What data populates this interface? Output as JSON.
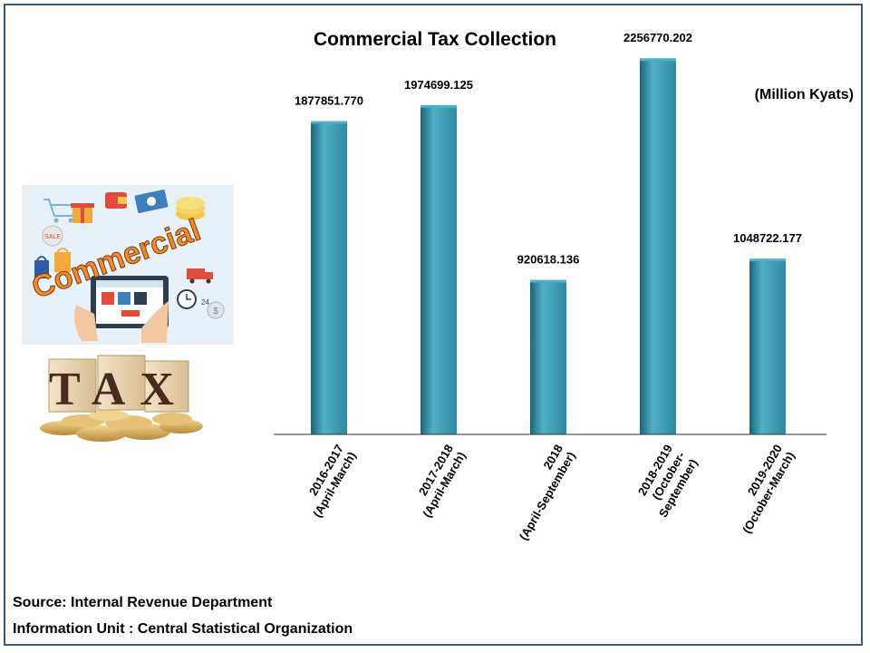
{
  "header": {
    "title": "Commercial Tax Collection",
    "unit": "(Million Kyats)"
  },
  "illustrations": {
    "commercial_word": "Commercial",
    "tax_word": "TAX"
  },
  "footer": {
    "source": "Source: Internal Revenue Department",
    "info": "Information Unit :  Central Statistical Organization"
  },
  "colors": {
    "bar": "#2f8aa0",
    "bar_light": "#4fb0c6",
    "bar_dark": "#1d6477",
    "axis": "#333333"
  },
  "chart_data": {
    "type": "bar",
    "title": "Commercial Tax Collection",
    "ylabel": "(Million Kyats)",
    "xlabel": "",
    "categories": [
      [
        "2016-2017",
        "(April-March)"
      ],
      [
        "2017-2018",
        "(April-March)"
      ],
      [
        "2018",
        "(April-September)"
      ],
      [
        "2018-2019",
        "(October-",
        "September)"
      ],
      [
        "2019-2020",
        "(October-March)"
      ]
    ],
    "values": [
      1877851.77,
      1974699.125,
      920618.136,
      2256770.202,
      1048722.177
    ],
    "value_labels": [
      "1877851.770",
      "1974699.125",
      "920618.136",
      "2256770.202",
      "1048722.177"
    ],
    "ylim": [
      0,
      2400000
    ],
    "grid": false,
    "legend": "none"
  }
}
